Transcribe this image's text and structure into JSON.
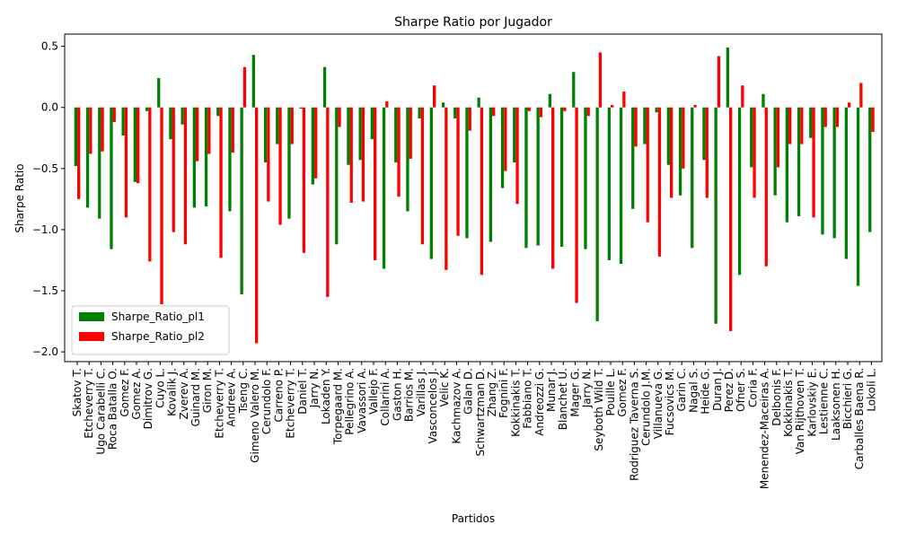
{
  "chart_data": {
    "type": "bar",
    "title": "Sharpe Ratio por Jugador",
    "x_label": "Partidos",
    "y_label": "Sharpe Ratio",
    "categories": [
      "Skatov T.",
      "Etcheverry T.",
      "Ugo Carabelli C.",
      "Roca Batalla O.",
      "Gomez F.",
      "Gomez A.",
      "Dimitrov G.",
      "Cuyo L.",
      "Kovalik J.",
      "Zverev A.",
      "Guinard M.",
      "Giron M.",
      "Etcheverry T.",
      "Andreev A.",
      "Tseng C.",
      "Gimeno Valero M.",
      "Cerundolo F.",
      "Carreno P.",
      "Etcheverry T.",
      "Daniel T.",
      "Jarry N.",
      "Lokaden Y.",
      "Torpegaard M.",
      "Pellegrino A.",
      "Vavassori A.",
      "Vallejo F.",
      "Collarini A.",
      "Gaston H.",
      "Barrios M.",
      "Varillas J.",
      "Vasconcelos J.",
      "Velic K.",
      "Kachmazov A.",
      "Galan D.",
      "Schwartzman D.",
      "Zhang Z.",
      "Fognini F.",
      "Kokkinakis T.",
      "Fabbiano T.",
      "Andreozzi G.",
      "Munar J.",
      "Blanchet U.",
      "Mager G.",
      "Jarry N.",
      "Seyboth Wild T.",
      "Pouille L.",
      "Gomez F.",
      "Rodriguez Taverna S.",
      "Cerundolo J.M.",
      "Villanueva G.",
      "Fucsovics M.",
      "Garin C.",
      "Nagal S.",
      "Heide G.",
      "Duran J.",
      "Perez D.",
      "Ofner S.",
      "Coria F.",
      "Menendez-Maceiras A.",
      "Delbonis F.",
      "Kokkinakis T.",
      "Van Rijthoven T.",
      "Karlovskiy E.",
      "Lestienne C.",
      "Laaksonen H.",
      "Bicchieri G.",
      "Carballes Baena R.",
      "Lokoli L."
    ],
    "series": [
      {
        "name": "Sharpe_Ratio_pl1",
        "color": "#008000",
        "values": [
          -0.48,
          -0.82,
          -0.91,
          -1.16,
          -0.23,
          -0.61,
          -0.03,
          0.24,
          -0.26,
          -0.14,
          -0.82,
          -0.81,
          -0.07,
          -0.85,
          -1.53,
          0.43,
          -0.45,
          -0.3,
          -0.91,
          -0.01,
          -0.63,
          0.33,
          -1.12,
          -0.47,
          -0.43,
          -0.26,
          -1.32,
          -0.45,
          -0.85,
          -0.09,
          -1.24,
          0.04,
          -0.09,
          -1.07,
          0.08,
          -1.1,
          -0.66,
          -0.45,
          -1.15,
          -1.13,
          0.11,
          -1.14,
          0.29,
          -1.16,
          -1.75,
          -1.25,
          -1.28,
          -0.83,
          -0.3,
          -0.04,
          -0.47,
          -0.72,
          -1.15,
          -0.43,
          -1.77,
          0.49,
          -1.37,
          -0.49,
          0.11,
          -0.72,
          -0.94,
          -0.89,
          -0.25,
          -1.04,
          -1.07,
          -1.24,
          -1.46,
          -1.02
        ]
      },
      {
        "name": "Sharpe_Ratio_pl2",
        "color": "#ff0000",
        "values": [
          -0.75,
          -0.38,
          -0.36,
          -0.12,
          -0.9,
          -0.62,
          -1.26,
          -1.61,
          -1.02,
          -1.12,
          -0.44,
          -0.38,
          -1.23,
          -0.37,
          0.33,
          -1.93,
          -0.77,
          -0.96,
          -0.3,
          -1.19,
          -0.58,
          -1.55,
          -0.16,
          -0.78,
          -0.77,
          -1.25,
          0.05,
          -0.73,
          -0.42,
          -1.12,
          0.18,
          -1.33,
          -1.05,
          -0.19,
          -1.37,
          -0.07,
          -0.52,
          -0.79,
          -0.03,
          -0.08,
          -1.32,
          -0.03,
          -1.6,
          -0.07,
          0.45,
          0.02,
          0.13,
          -0.32,
          -0.94,
          -1.22,
          -0.74,
          -0.5,
          0.02,
          -0.74,
          0.42,
          -1.83,
          0.18,
          -0.74,
          -1.3,
          -0.49,
          -0.3,
          -0.3,
          -0.9,
          -0.16,
          -0.16,
          0.04,
          0.2,
          -0.2
        ]
      }
    ],
    "ylim": [
      -2.08,
      0.6
    ],
    "yticks": [
      {
        "value": -2.0,
        "label": "−2.0"
      },
      {
        "value": -1.5,
        "label": "−1.5"
      },
      {
        "value": -1.0,
        "label": "−1.0"
      },
      {
        "value": -0.5,
        "label": "−0.5"
      },
      {
        "value": 0.0,
        "label": "0.0"
      },
      {
        "value": 0.5,
        "label": "0.5"
      }
    ],
    "legend": "lower left"
  }
}
